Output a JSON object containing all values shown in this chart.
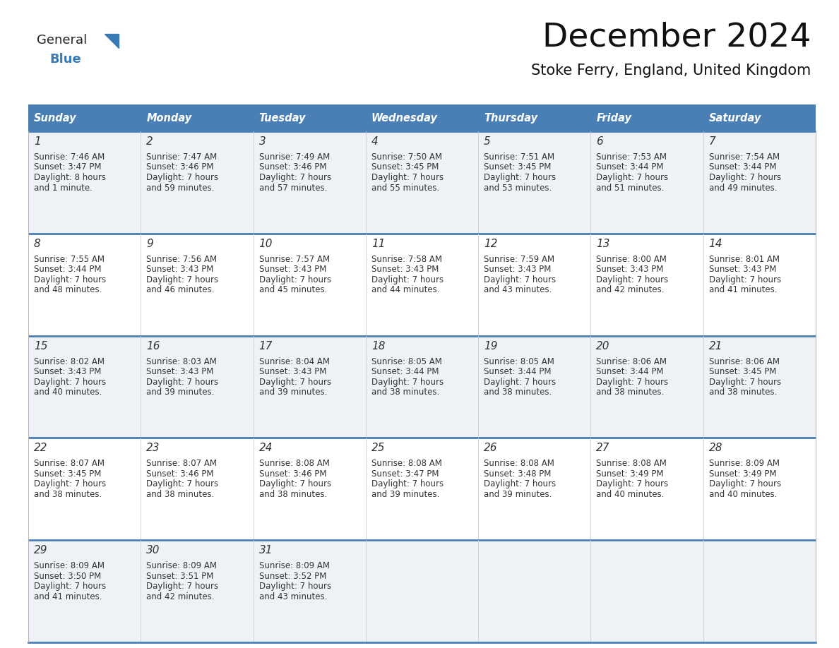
{
  "title": "December 2024",
  "subtitle": "Stoke Ferry, England, United Kingdom",
  "header_bg": "#4a7fb5",
  "header_text_color": "#ffffff",
  "row_bg_odd": "#eef2f7",
  "row_bg_even": "#ffffff",
  "day_names": [
    "Sunday",
    "Monday",
    "Tuesday",
    "Wednesday",
    "Thursday",
    "Friday",
    "Saturday"
  ],
  "header_font_size": 10.5,
  "day_num_font_size": 11,
  "cell_font_size": 8.5,
  "title_font_size": 34,
  "subtitle_font_size": 15,
  "line_color": "#4a7fb5",
  "text_color": "#333333",
  "logo_general_color": "#222222",
  "logo_blue_color": "#3a7ab5",
  "calendar": [
    [
      {
        "day": 1,
        "sunrise": "7:46 AM",
        "sunset": "3:47 PM",
        "daylight_hours": 8,
        "daylight_min_str": "1 minute"
      },
      {
        "day": 2,
        "sunrise": "7:47 AM",
        "sunset": "3:46 PM",
        "daylight_hours": 7,
        "daylight_min_str": "59 minutes"
      },
      {
        "day": 3,
        "sunrise": "7:49 AM",
        "sunset": "3:46 PM",
        "daylight_hours": 7,
        "daylight_min_str": "57 minutes"
      },
      {
        "day": 4,
        "sunrise": "7:50 AM",
        "sunset": "3:45 PM",
        "daylight_hours": 7,
        "daylight_min_str": "55 minutes"
      },
      {
        "day": 5,
        "sunrise": "7:51 AM",
        "sunset": "3:45 PM",
        "daylight_hours": 7,
        "daylight_min_str": "53 minutes"
      },
      {
        "day": 6,
        "sunrise": "7:53 AM",
        "sunset": "3:44 PM",
        "daylight_hours": 7,
        "daylight_min_str": "51 minutes"
      },
      {
        "day": 7,
        "sunrise": "7:54 AM",
        "sunset": "3:44 PM",
        "daylight_hours": 7,
        "daylight_min_str": "49 minutes"
      }
    ],
    [
      {
        "day": 8,
        "sunrise": "7:55 AM",
        "sunset": "3:44 PM",
        "daylight_hours": 7,
        "daylight_min_str": "48 minutes"
      },
      {
        "day": 9,
        "sunrise": "7:56 AM",
        "sunset": "3:43 PM",
        "daylight_hours": 7,
        "daylight_min_str": "46 minutes"
      },
      {
        "day": 10,
        "sunrise": "7:57 AM",
        "sunset": "3:43 PM",
        "daylight_hours": 7,
        "daylight_min_str": "45 minutes"
      },
      {
        "day": 11,
        "sunrise": "7:58 AM",
        "sunset": "3:43 PM",
        "daylight_hours": 7,
        "daylight_min_str": "44 minutes"
      },
      {
        "day": 12,
        "sunrise": "7:59 AM",
        "sunset": "3:43 PM",
        "daylight_hours": 7,
        "daylight_min_str": "43 minutes"
      },
      {
        "day": 13,
        "sunrise": "8:00 AM",
        "sunset": "3:43 PM",
        "daylight_hours": 7,
        "daylight_min_str": "42 minutes"
      },
      {
        "day": 14,
        "sunrise": "8:01 AM",
        "sunset": "3:43 PM",
        "daylight_hours": 7,
        "daylight_min_str": "41 minutes"
      }
    ],
    [
      {
        "day": 15,
        "sunrise": "8:02 AM",
        "sunset": "3:43 PM",
        "daylight_hours": 7,
        "daylight_min_str": "40 minutes"
      },
      {
        "day": 16,
        "sunrise": "8:03 AM",
        "sunset": "3:43 PM",
        "daylight_hours": 7,
        "daylight_min_str": "39 minutes"
      },
      {
        "day": 17,
        "sunrise": "8:04 AM",
        "sunset": "3:43 PM",
        "daylight_hours": 7,
        "daylight_min_str": "39 minutes"
      },
      {
        "day": 18,
        "sunrise": "8:05 AM",
        "sunset": "3:44 PM",
        "daylight_hours": 7,
        "daylight_min_str": "38 minutes"
      },
      {
        "day": 19,
        "sunrise": "8:05 AM",
        "sunset": "3:44 PM",
        "daylight_hours": 7,
        "daylight_min_str": "38 minutes"
      },
      {
        "day": 20,
        "sunrise": "8:06 AM",
        "sunset": "3:44 PM",
        "daylight_hours": 7,
        "daylight_min_str": "38 minutes"
      },
      {
        "day": 21,
        "sunrise": "8:06 AM",
        "sunset": "3:45 PM",
        "daylight_hours": 7,
        "daylight_min_str": "38 minutes"
      }
    ],
    [
      {
        "day": 22,
        "sunrise": "8:07 AM",
        "sunset": "3:45 PM",
        "daylight_hours": 7,
        "daylight_min_str": "38 minutes"
      },
      {
        "day": 23,
        "sunrise": "8:07 AM",
        "sunset": "3:46 PM",
        "daylight_hours": 7,
        "daylight_min_str": "38 minutes"
      },
      {
        "day": 24,
        "sunrise": "8:08 AM",
        "sunset": "3:46 PM",
        "daylight_hours": 7,
        "daylight_min_str": "38 minutes"
      },
      {
        "day": 25,
        "sunrise": "8:08 AM",
        "sunset": "3:47 PM",
        "daylight_hours": 7,
        "daylight_min_str": "39 minutes"
      },
      {
        "day": 26,
        "sunrise": "8:08 AM",
        "sunset": "3:48 PM",
        "daylight_hours": 7,
        "daylight_min_str": "39 minutes"
      },
      {
        "day": 27,
        "sunrise": "8:08 AM",
        "sunset": "3:49 PM",
        "daylight_hours": 7,
        "daylight_min_str": "40 minutes"
      },
      {
        "day": 28,
        "sunrise": "8:09 AM",
        "sunset": "3:49 PM",
        "daylight_hours": 7,
        "daylight_min_str": "40 minutes"
      }
    ],
    [
      {
        "day": 29,
        "sunrise": "8:09 AM",
        "sunset": "3:50 PM",
        "daylight_hours": 7,
        "daylight_min_str": "41 minutes"
      },
      {
        "day": 30,
        "sunrise": "8:09 AM",
        "sunset": "3:51 PM",
        "daylight_hours": 7,
        "daylight_min_str": "42 minutes"
      },
      {
        "day": 31,
        "sunrise": "8:09 AM",
        "sunset": "3:52 PM",
        "daylight_hours": 7,
        "daylight_min_str": "43 minutes"
      },
      null,
      null,
      null,
      null
    ]
  ]
}
